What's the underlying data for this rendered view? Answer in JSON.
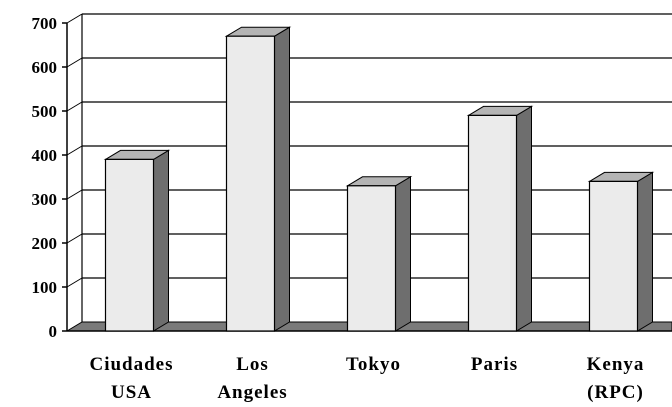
{
  "chart_data": {
    "type": "bar",
    "categories": [
      [
        "Ciudades",
        "USA"
      ],
      [
        "Los",
        "Angeles"
      ],
      [
        "Tokyo"
      ],
      [
        "Paris"
      ],
      [
        "Kenya",
        "(RPC)"
      ]
    ],
    "values": [
      390,
      670,
      330,
      490,
      340
    ],
    "yticks": [
      0,
      100,
      200,
      300,
      400,
      500,
      600,
      700
    ],
    "ylim": [
      0,
      700
    ],
    "grid": true,
    "title": "",
    "xlabel": "",
    "ylabel": "",
    "colors": {
      "bar_front": "#ebebeb",
      "bar_top": "#b4b4b4",
      "bar_side": "#6e6e6e",
      "floor": "#7a7a7a",
      "grid": "#000000"
    }
  }
}
